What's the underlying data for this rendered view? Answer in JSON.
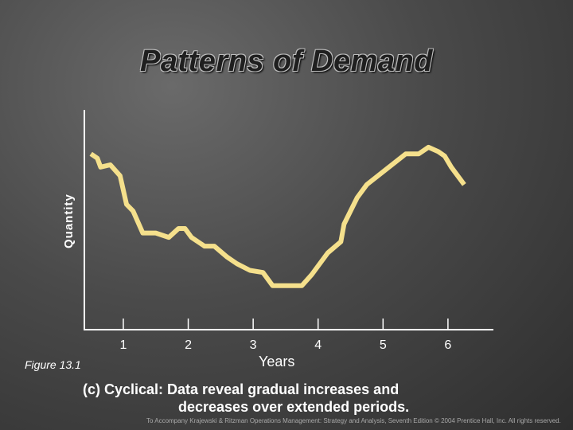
{
  "slide": {
    "title": "Patterns of Demand",
    "figure_label": "Figure 13.1",
    "caption_line1": "(c) Cyclical: Data reveal gradual increases and",
    "caption_line2": "decreases over extended periods.",
    "footer": "To Accompany Krajewski & Ritzman Operations Management: Strategy and Analysis, Seventh Edition © 2004 Prentice Hall, Inc. All rights reserved."
  },
  "chart_data": {
    "type": "line",
    "title": "Patterns of Demand",
    "xlabel": "Years",
    "ylabel": "Quantity",
    "x_ticks": [
      "1",
      "2",
      "3",
      "4",
      "5",
      "6"
    ],
    "xlim": [
      0.4,
      6.7
    ],
    "ylim": [
      0,
      100
    ],
    "grid": false,
    "line_color": "#f5e08c",
    "series": [
      {
        "x": [
          0.5,
          0.6,
          0.65,
          0.8,
          0.95,
          1.05,
          1.15,
          1.3,
          1.5,
          1.7,
          1.85,
          1.95,
          2.05,
          2.25,
          2.4,
          2.6,
          2.75,
          2.95,
          3.15,
          3.3,
          3.45,
          3.75,
          3.9,
          4.15,
          4.35,
          4.4,
          4.6,
          4.75,
          5.05,
          5.35,
          5.55,
          5.7,
          5.85,
          5.95,
          6.05,
          6.25
        ],
        "y": [
          80,
          78,
          74,
          75,
          70,
          57,
          54,
          44,
          44,
          42,
          46,
          46,
          42,
          38,
          38,
          33,
          30,
          27,
          26,
          20,
          20,
          20,
          25,
          35,
          40,
          48,
          60,
          66,
          73,
          80,
          80,
          83,
          81,
          79,
          74,
          66
        ]
      }
    ]
  }
}
